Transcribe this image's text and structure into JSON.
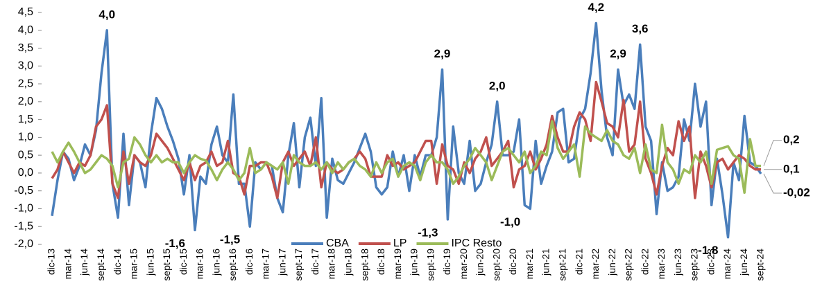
{
  "chart_data": {
    "type": "line",
    "categories": [
      "dic-13",
      null,
      null,
      "mar-14",
      null,
      null,
      "jun-14",
      null,
      null,
      "sept-14",
      null,
      null,
      "dic-14",
      null,
      null,
      "mar-15",
      null,
      null,
      "jun-15",
      null,
      null,
      "sept-15",
      null,
      null,
      "dic-15",
      null,
      null,
      "mar-16",
      null,
      null,
      "jun-16",
      null,
      null,
      "sept-16",
      null,
      null,
      "dic-16",
      null,
      null,
      "mar-17",
      null,
      null,
      "jun-17",
      null,
      null,
      "sept-17",
      null,
      null,
      "dic-17",
      null,
      null,
      "mar-18",
      null,
      null,
      "jun-18",
      null,
      null,
      "sept-18",
      null,
      null,
      "dic-18",
      null,
      null,
      "mar-19",
      null,
      null,
      "jun-19",
      null,
      null,
      "sept-19",
      null,
      null,
      "dic-19",
      null,
      null,
      "mar-20",
      null,
      null,
      "jun-20",
      null,
      null,
      "sept-20",
      null,
      null,
      "dic-20",
      null,
      null,
      "mar-21",
      null,
      null,
      "jun-21",
      null,
      null,
      "sept-21",
      null,
      null,
      "dic-21",
      null,
      null,
      "mar-22",
      null,
      null,
      "jun-22",
      null,
      null,
      "sept-22",
      null,
      null,
      "dic-22",
      null,
      null,
      "mar-23",
      null,
      null,
      "jun-23",
      null,
      null,
      "sept-23",
      null,
      null,
      "dic-23",
      null,
      null,
      "mar-24",
      null,
      null,
      "jun-24",
      null,
      null,
      "sept-24"
    ],
    "series": [
      {
        "name": "CBA",
        "color": "#4a7ebb",
        "values": [
          -1.2,
          -0.2,
          0.6,
          0.4,
          -0.2,
          0.2,
          0.8,
          0.5,
          1.2,
          2.8,
          4.0,
          -0.3,
          -1.25,
          1.1,
          -0.9,
          0.5,
          0.3,
          -0.4,
          1.1,
          2.1,
          1.8,
          1.3,
          0.9,
          0.4,
          -0.6,
          0.5,
          -1.6,
          -0.1,
          -0.3,
          0.8,
          1.3,
          0.5,
          0.3,
          2.2,
          -0.3,
          -0.3,
          -1.5,
          0.3,
          0.1,
          0.3,
          0.2,
          -0.7,
          -1.1,
          0.5,
          1.4,
          -0.4,
          1.0,
          1.55,
          0.2,
          2.1,
          -1.25,
          0.4,
          -0.2,
          -0.3,
          0.0,
          0.3,
          0.7,
          1.1,
          0.6,
          -0.4,
          -0.6,
          -0.4,
          0.6,
          -0.1,
          0.5,
          -0.5,
          0.5,
          -0.1,
          0.5,
          0.5,
          1.0,
          2.9,
          -1.3,
          1.3,
          0.0,
          -0.3,
          0.9,
          -0.5,
          -0.3,
          0.3,
          0.8,
          2.0,
          0.5,
          0.5,
          0.6,
          1.5,
          -0.9,
          -1.0,
          0.9,
          -0.3,
          0.2,
          0.6,
          1.7,
          1.8,
          0.3,
          0.4,
          1.5,
          1.8,
          2.8,
          4.2,
          2.3,
          1.0,
          0.5,
          2.9,
          1.9,
          2.2,
          1.8,
          3.6,
          1.3,
          0.9,
          -1.15,
          0.3,
          -0.5,
          -0.4,
          -0.1,
          1.5,
          0.9,
          2.5,
          1.3,
          2.0,
          -0.9,
          0.4,
          -0.6,
          -1.8,
          0.3,
          -0.2,
          1.6,
          0.3,
          0.2,
          -0.02
        ],
        "value_labels": [
          null,
          null,
          null,
          null,
          null,
          null,
          null,
          null,
          null,
          null,
          "4,0",
          null,
          null,
          null,
          null,
          null,
          null,
          null,
          null,
          null,
          null,
          null,
          null,
          null,
          null,
          null,
          "-1,6",
          null,
          null,
          null,
          null,
          null,
          null,
          null,
          null,
          null,
          "-1,5",
          null,
          null,
          null,
          null,
          null,
          null,
          null,
          null,
          null,
          null,
          null,
          null,
          null,
          null,
          null,
          null,
          null,
          null,
          null,
          null,
          null,
          null,
          null,
          null,
          null,
          null,
          null,
          null,
          null,
          null,
          null,
          null,
          null,
          null,
          "2,9",
          "-1,3",
          null,
          null,
          null,
          null,
          null,
          null,
          null,
          null,
          "2,0",
          null,
          null,
          null,
          null,
          null,
          "-1,0",
          null,
          null,
          null,
          null,
          null,
          null,
          null,
          null,
          null,
          null,
          null,
          "4,2",
          null,
          null,
          null,
          "2,9",
          null,
          null,
          null,
          "3,6",
          null,
          null,
          null,
          null,
          null,
          null,
          null,
          null,
          null,
          null,
          null,
          null,
          null,
          null,
          null,
          "-1,8",
          null,
          null,
          null,
          null,
          null,
          "-0,02"
        ]
      },
      {
        "name": "LP",
        "color": "#c0504d",
        "values": [
          -0.15,
          0.1,
          0.6,
          0.3,
          0.0,
          0.3,
          0.2,
          0.5,
          1.3,
          1.5,
          1.9,
          -0.3,
          -0.7,
          0.6,
          -0.3,
          0.5,
          0.3,
          0.2,
          0.5,
          1.1,
          0.9,
          0.7,
          0.4,
          0.1,
          -0.2,
          0.3,
          -0.2,
          0.2,
          0.3,
          0.6,
          0.2,
          0.3,
          0.9,
          0.0,
          -0.1,
          -0.6,
          0.2,
          0.2,
          0.3,
          0.3,
          -0.1,
          -0.7,
          0.3,
          0.6,
          0.2,
          0.4,
          0.6,
          0.2,
          1.0,
          -0.4,
          0.3,
          0.1,
          0.0,
          0.1,
          0.3,
          0.4,
          0.6,
          0.4,
          -0.1,
          -0.1,
          -0.1,
          0.5,
          0.2,
          0.3,
          0.1,
          0.2,
          0.3,
          0.6,
          0.9,
          0.9,
          -0.3,
          0.8,
          0.2,
          0.1,
          -0.3,
          0.3,
          0.0,
          0.4,
          0.6,
          1.0,
          0.2,
          0.4,
          0.6,
          0.9,
          -0.4,
          0.1,
          0.2,
          0.6,
          0.1,
          0.4,
          0.8,
          1.6,
          1.0,
          0.6,
          0.6,
          1.3,
          1.7,
          1.5,
          0.9,
          2.55,
          2.0,
          1.4,
          1.3,
          1.0,
          2.05,
          0.6,
          0.8,
          2.0,
          0.4,
          0.0,
          -0.6,
          0.2,
          0.7,
          0.5,
          1.45,
          0.9,
          1.3,
          -0.7,
          0.6,
          0.2,
          -0.4,
          0.3,
          0.4,
          0.1,
          0.3,
          0.5,
          0.4,
          0.2,
          0.1,
          0.1
        ],
        "value_labels": [
          null,
          null,
          null,
          null,
          null,
          null,
          null,
          null,
          null,
          null,
          null,
          null,
          null,
          null,
          null,
          null,
          null,
          null,
          null,
          null,
          null,
          null,
          null,
          null,
          null,
          null,
          null,
          null,
          null,
          null,
          null,
          null,
          null,
          null,
          null,
          null,
          null,
          null,
          null,
          null,
          null,
          null,
          null,
          null,
          null,
          null,
          null,
          null,
          null,
          null,
          null,
          null,
          null,
          null,
          null,
          null,
          null,
          null,
          null,
          null,
          null,
          null,
          null,
          null,
          null,
          null,
          null,
          null,
          null,
          null,
          null,
          null,
          null,
          null,
          null,
          null,
          null,
          null,
          null,
          null,
          null,
          null,
          null,
          null,
          null,
          null,
          null,
          null,
          null,
          null,
          null,
          null,
          null,
          null,
          null,
          null,
          null,
          null,
          null,
          null,
          null,
          null,
          null,
          null,
          null,
          null,
          null,
          null,
          null,
          null,
          null,
          null,
          null,
          null,
          null,
          null,
          null,
          null,
          null,
          null,
          null,
          null,
          null,
          null,
          null,
          null,
          null,
          null,
          null,
          "0,1"
        ]
      },
      {
        "name": "IPC Resto",
        "color": "#9bbb59",
        "values": [
          0.6,
          0.3,
          0.6,
          0.85,
          0.6,
          0.3,
          0.0,
          0.1,
          0.3,
          0.5,
          0.4,
          0.2,
          -0.4,
          0.3,
          0.4,
          1.0,
          0.8,
          0.5,
          0.3,
          0.5,
          0.3,
          0.4,
          0.3,
          0.3,
          0.0,
          0.3,
          0.5,
          0.4,
          0.35,
          0.1,
          -0.2,
          0.1,
          0.3,
          0.1,
          -0.2,
          0.0,
          0.7,
          0.0,
          0.1,
          0.3,
          0.2,
          0.1,
          0.3,
          -0.3,
          0.5,
          0.3,
          0.2,
          0.2,
          0.3,
          0.1,
          0.3,
          0.0,
          0.3,
          0.1,
          0.3,
          0.4,
          0.2,
          0.1,
          -0.1,
          0.3,
          0.0,
          0.3,
          0.4,
          -0.1,
          0.2,
          0.3,
          0.2,
          -0.2,
          0.3,
          0.5,
          0.3,
          0.3,
          0.1,
          -0.3,
          -0.1,
          0.2,
          0.4,
          0.7,
          0.5,
          0.3,
          -0.2,
          0.2,
          0.6,
          0.7,
          0.5,
          0.3,
          0.6,
          0.0,
          0.2,
          0.6,
          0.5,
          1.45,
          0.7,
          0.4,
          0.6,
          0.8,
          -0.1,
          1.3,
          1.1,
          1.0,
          0.9,
          1.2,
          0.9,
          0.8,
          0.5,
          0.4,
          0.7,
          0.0,
          0.8,
          0.1,
          0.0,
          1.35,
          0.3,
          0.1,
          -0.3,
          0.1,
          0.0,
          0.5,
          0.3,
          0.6,
          -0.3,
          0.65,
          0.7,
          0.75,
          0.5,
          0.4,
          -0.55,
          0.95,
          0.2,
          0.2
        ],
        "value_labels": [
          null,
          null,
          null,
          null,
          null,
          null,
          null,
          null,
          null,
          null,
          null,
          null,
          null,
          null,
          null,
          null,
          null,
          null,
          null,
          null,
          null,
          null,
          null,
          null,
          null,
          null,
          null,
          null,
          null,
          null,
          null,
          null,
          null,
          null,
          null,
          null,
          null,
          null,
          null,
          null,
          null,
          null,
          null,
          null,
          null,
          null,
          null,
          null,
          null,
          null,
          null,
          null,
          null,
          null,
          null,
          null,
          null,
          null,
          null,
          null,
          null,
          null,
          null,
          null,
          null,
          null,
          null,
          null,
          null,
          null,
          null,
          null,
          null,
          null,
          null,
          null,
          null,
          null,
          null,
          null,
          null,
          null,
          null,
          null,
          null,
          null,
          null,
          null,
          null,
          null,
          null,
          null,
          null,
          null,
          null,
          null,
          null,
          null,
          null,
          null,
          null,
          null,
          null,
          null,
          null,
          null,
          null,
          null,
          null,
          null,
          null,
          null,
          null,
          null,
          null,
          null,
          null,
          null,
          null,
          null,
          null,
          null,
          null,
          null,
          null,
          null,
          null,
          null,
          null,
          "0,2"
        ]
      }
    ],
    "ylim": [
      -2.0,
      4.5
    ],
    "yticks": [
      {
        "value": -2.0,
        "label": "-2,0"
      },
      {
        "value": -1.5,
        "label": "-1,5"
      },
      {
        "value": -1.0,
        "label": "-1,0"
      },
      {
        "value": -0.5,
        "label": "-0,5"
      },
      {
        "value": 0,
        "label": "0,0"
      },
      {
        "value": 0.5,
        "label": "0,5"
      },
      {
        "value": 1.0,
        "label": "1,0"
      },
      {
        "value": 1.5,
        "label": "1,5"
      },
      {
        "value": 2.0,
        "label": "2,0"
      },
      {
        "value": 2.5,
        "label": "2,5"
      },
      {
        "value": 3.0,
        "label": "3,0"
      },
      {
        "value": 3.5,
        "label": "3,5"
      },
      {
        "value": 4.0,
        "label": "4,0"
      },
      {
        "value": 4.5,
        "label": "4,5"
      }
    ],
    "legend": "bottom"
  }
}
